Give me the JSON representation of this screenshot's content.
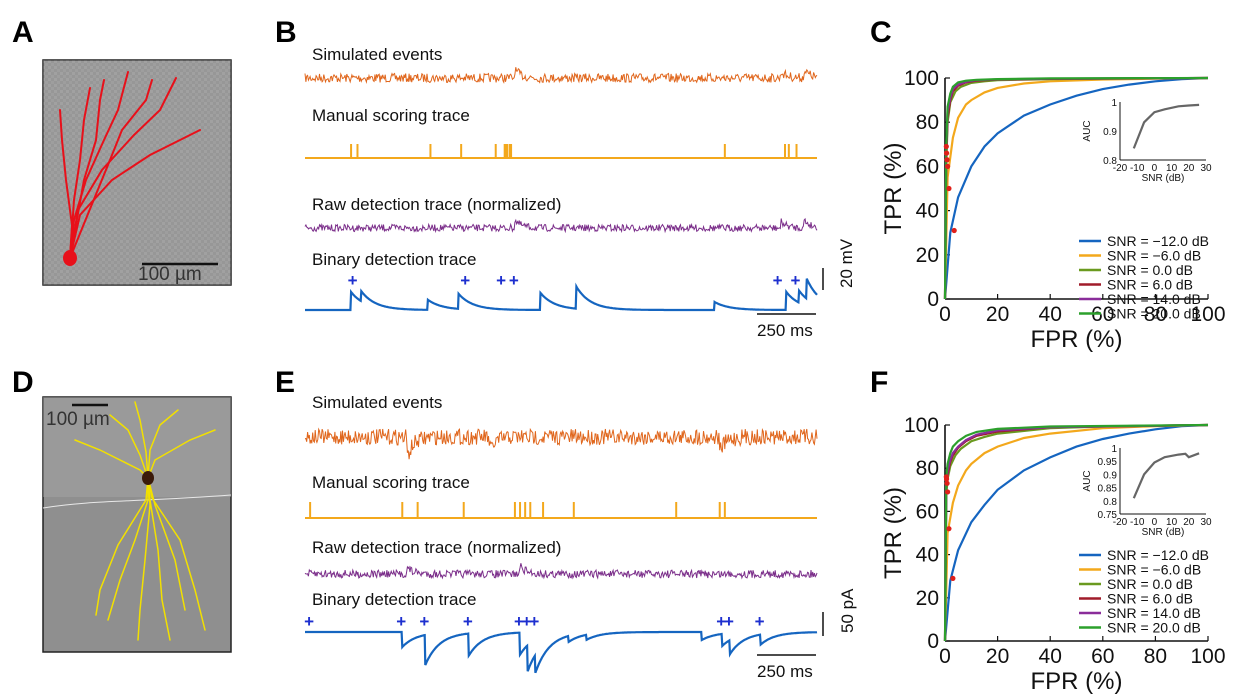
{
  "panels": {
    "A": {
      "letter": "A",
      "scale_label": "100 µm"
    },
    "B": {
      "letter": "B",
      "titles": [
        "Simulated events",
        "Manual scoring trace",
        "Raw detection trace (normalized)",
        "Binary detection trace"
      ],
      "scale_v": "20 mV",
      "scale_t": "250 ms"
    },
    "C": {
      "letter": "C"
    },
    "D": {
      "letter": "D",
      "scale_label": "100 µm"
    },
    "E": {
      "letter": "E",
      "titles": [
        "Simulated events",
        "Manual scoring trace",
        "Raw detection trace (normalized)",
        "Binary detection trace"
      ],
      "scale_v": "50 pA",
      "scale_t": "250 ms"
    },
    "F": {
      "letter": "F"
    }
  },
  "colors": {
    "sim": "#e0661c",
    "manual": "#f3a81c",
    "raw": "#7b2e8a",
    "binary": "#1565c0",
    "marker": "#1d2fcf",
    "neuron_A": "#e8101a",
    "neuron_D": "#f2e000",
    "micro_bg": "#9a9a9a",
    "roc_point": "#e0201a",
    "auc_line": "#666666"
  },
  "chart_data": [
    {
      "type": "line",
      "panel": "C",
      "xlabel": "FPR (%)",
      "ylabel": "TPR (%)",
      "xlim": [
        0,
        100
      ],
      "ylim": [
        0,
        100
      ],
      "xticks": [
        "0",
        "20",
        "40",
        "60",
        "80",
        "100"
      ],
      "yticks": [
        "0",
        "20",
        "40",
        "60",
        "80",
        "100"
      ],
      "legend_position": "bottom-right",
      "series": [
        {
          "name": "SNR = −12.0 dB",
          "color": "#1565c0",
          "x": [
            0,
            2,
            5,
            10,
            15,
            20,
            30,
            40,
            50,
            60,
            70,
            80,
            90,
            100
          ],
          "y": [
            0,
            30,
            46,
            60,
            69,
            75,
            83,
            88,
            92,
            95,
            97,
            98.5,
            99.5,
            100
          ]
        },
        {
          "name": "SNR = −6.0 dB",
          "color": "#f3a81c",
          "x": [
            0,
            1,
            3,
            5,
            8,
            10,
            15,
            20,
            30,
            40,
            60,
            80,
            100
          ],
          "y": [
            0,
            55,
            73,
            82,
            88,
            90,
            93.5,
            95.5,
            97.5,
            98.5,
            99.3,
            99.7,
            100
          ]
        },
        {
          "name": "SNR = 0.0 dB",
          "color": "#6a9a1f",
          "x": [
            0,
            0.5,
            1,
            2,
            4,
            6,
            10,
            15,
            20,
            40,
            60,
            100
          ],
          "y": [
            0,
            62,
            80,
            89,
            94,
            96,
            97.8,
            98.5,
            99,
            99.5,
            99.7,
            100
          ]
        },
        {
          "name": "SNR = 6.0 dB",
          "color": "#a01c2a",
          "x": [
            0,
            0.5,
            1,
            2,
            3,
            5,
            8,
            12,
            20,
            40,
            100
          ],
          "y": [
            0,
            65,
            82,
            90,
            94,
            96.5,
            98,
            98.8,
            99.3,
            99.6,
            100
          ]
        },
        {
          "name": "SNR = 14.0 dB",
          "color": "#8a2d9a",
          "x": [
            0,
            0.5,
            1,
            2,
            3,
            5,
            8,
            12,
            20,
            40,
            100
          ],
          "y": [
            0,
            67,
            85,
            91,
            95,
            97,
            98.3,
            99,
            99.4,
            99.7,
            100
          ]
        },
        {
          "name": "SNR = 20.0 dB",
          "color": "#2ca02c",
          "x": [
            0,
            0.5,
            1,
            2,
            3,
            5,
            8,
            12,
            20,
            40,
            100
          ],
          "y": [
            0,
            70,
            87,
            93,
            96,
            98,
            98.8,
            99.2,
            99.5,
            99.8,
            100
          ]
        }
      ],
      "operating_points": {
        "x": [
          3.5,
          1.5,
          1.0,
          0.8,
          0.6,
          0.5
        ],
        "y": [
          31,
          50,
          60,
          63,
          66,
          69
        ]
      },
      "inset": {
        "xlabel": "SNR (dB)",
        "ylabel": "AUC",
        "xlim": [
          -20,
          30
        ],
        "ylim": [
          0.8,
          1.0
        ],
        "xticks": [
          "-20",
          "-10",
          "0",
          "10",
          "20",
          "30"
        ],
        "yticks": [
          "0.8",
          "0.9",
          "1"
        ],
        "x": [
          -12,
          -6,
          0,
          6,
          14,
          20,
          26
        ],
        "y": [
          0.84,
          0.93,
          0.965,
          0.975,
          0.985,
          0.988,
          0.99
        ]
      }
    },
    {
      "type": "line",
      "panel": "F",
      "xlabel": "FPR (%)",
      "ylabel": "TPR (%)",
      "xlim": [
        0,
        100
      ],
      "ylim": [
        0,
        100
      ],
      "xticks": [
        "0",
        "20",
        "40",
        "60",
        "80",
        "100"
      ],
      "yticks": [
        "0",
        "20",
        "40",
        "60",
        "80",
        "100"
      ],
      "legend_position": "bottom-right",
      "series": [
        {
          "name": "SNR = −12.0 dB",
          "color": "#1565c0",
          "x": [
            0,
            2,
            5,
            10,
            15,
            20,
            30,
            40,
            50,
            60,
            70,
            80,
            90,
            100
          ],
          "y": [
            0,
            28,
            42,
            55,
            63,
            70,
            79,
            85,
            90,
            93.5,
            96,
            98,
            99.5,
            100
          ]
        },
        {
          "name": "SNR = −6.0 dB",
          "color": "#f3a81c",
          "x": [
            0,
            1,
            3,
            5,
            8,
            10,
            15,
            20,
            30,
            40,
            60,
            80,
            100
          ],
          "y": [
            0,
            50,
            64,
            72,
            79,
            82,
            87,
            90,
            94,
            96,
            98.5,
            99.5,
            100
          ]
        },
        {
          "name": "SNR = 0.0 dB",
          "color": "#6a9a1f",
          "x": [
            0,
            0.5,
            1,
            2,
            4,
            6,
            10,
            15,
            20,
            40,
            60,
            100
          ],
          "y": [
            0,
            68,
            75,
            81,
            86,
            89,
            92.5,
            94.5,
            96,
            98.5,
            99.3,
            100
          ]
        },
        {
          "name": "SNR = 6.0 dB",
          "color": "#a01c2a",
          "x": [
            0,
            0.5,
            1,
            2,
            3,
            5,
            8,
            12,
            20,
            40,
            100
          ],
          "y": [
            0,
            72,
            77,
            83,
            86,
            89.5,
            92.5,
            95,
            97,
            99,
            100
          ]
        },
        {
          "name": "SNR = 14.0 dB",
          "color": "#8a2d9a",
          "x": [
            0,
            0.5,
            1,
            2,
            3,
            5,
            8,
            12,
            20,
            40,
            100
          ],
          "y": [
            0,
            74,
            79,
            84,
            87,
            90,
            93,
            95.5,
            97.5,
            99,
            100
          ]
        },
        {
          "name": "SNR = 20.0 dB",
          "color": "#2ca02c",
          "x": [
            0,
            0.5,
            1,
            2,
            3,
            5,
            8,
            12,
            20,
            40,
            100
          ],
          "y": [
            0,
            76,
            82,
            87,
            90,
            92.5,
            95,
            96.8,
            98.2,
            99.3,
            100
          ]
        }
      ],
      "operating_points": {
        "x": [
          3.0,
          1.5,
          1.0,
          0.8,
          0.6,
          0.5
        ],
        "y": [
          29,
          52,
          69,
          73,
          75,
          76
        ]
      },
      "inset": {
        "xlabel": "SNR (dB)",
        "ylabel": "AUC",
        "xlim": [
          -20,
          30
        ],
        "ylim": [
          0.75,
          1.0
        ],
        "xticks": [
          "-20",
          "-10",
          "0",
          "10",
          "20",
          "30"
        ],
        "yticks": [
          "0.75",
          "0.8",
          "0.85",
          "0.9",
          "0.95",
          "1"
        ],
        "x": [
          -12,
          -6,
          0,
          6,
          14,
          18,
          20,
          26
        ],
        "y": [
          0.81,
          0.9,
          0.945,
          0.965,
          0.975,
          0.978,
          0.965,
          0.98
        ]
      }
    }
  ],
  "traces": {
    "B": {
      "manual_events": [
        0.18,
        0.205,
        0.49,
        0.61,
        0.745,
        0.78,
        0.785,
        0.79,
        0.8,
        0.805,
        1.64,
        1.875,
        1.89,
        1.92
      ],
      "detection_events": [
        0.19,
        0.63,
        0.77,
        0.82,
        1.85,
        1.92
      ],
      "binary_events": [
        {
          "t": 0.18,
          "a": 18
        },
        {
          "t": 0.22,
          "a": 10
        },
        {
          "t": 0.48,
          "a": 10
        },
        {
          "t": 0.6,
          "a": 15
        },
        {
          "t": 0.92,
          "a": 17
        },
        {
          "t": 1.06,
          "a": 22
        },
        {
          "t": 1.6,
          "a": 8
        },
        {
          "t": 1.88,
          "a": 18
        },
        {
          "t": 1.93,
          "a": 12
        },
        {
          "t": 1.96,
          "a": 20
        }
      ]
    },
    "E": {
      "manual_events": [
        0.02,
        0.38,
        0.44,
        0.62,
        0.82,
        0.84,
        0.86,
        0.88,
        0.93,
        1.05,
        1.45,
        1.62,
        1.64
      ],
      "detection_events": [
        0.02,
        0.38,
        0.47,
        0.64,
        0.84,
        0.87,
        0.9,
        1.63,
        1.66,
        1.78
      ],
      "binary_events": [
        {
          "t": 0.38,
          "a": 15
        },
        {
          "t": 0.47,
          "a": 30
        },
        {
          "t": 0.64,
          "a": 22
        },
        {
          "t": 0.84,
          "a": 22
        },
        {
          "t": 0.87,
          "a": 26
        },
        {
          "t": 0.9,
          "a": 18
        },
        {
          "t": 1.03,
          "a": 6
        },
        {
          "t": 1.1,
          "a": 5
        },
        {
          "t": 1.55,
          "a": 8
        },
        {
          "t": 1.63,
          "a": 12
        },
        {
          "t": 1.66,
          "a": 14
        },
        {
          "t": 1.78,
          "a": 10
        }
      ]
    }
  }
}
